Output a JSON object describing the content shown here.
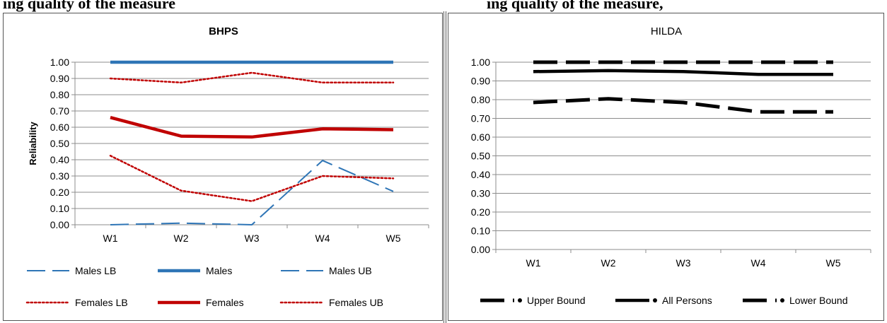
{
  "header": {
    "left_text": "ing quality of the measure",
    "right_text": "ing quality of the measure,"
  },
  "chart_data": [
    {
      "type": "line",
      "title": "BHPS",
      "xlabel": "",
      "ylabel": "Reliability",
      "categories": [
        "W1",
        "W2",
        "W3",
        "W4",
        "W5"
      ],
      "ylim": [
        0,
        1
      ],
      "yticks": [
        "0.00",
        "0.10",
        "0.20",
        "0.30",
        "0.40",
        "0.50",
        "0.60",
        "0.70",
        "0.80",
        "0.90",
        "1.00"
      ],
      "grid": true,
      "legend_position": "bottom",
      "series": [
        {
          "name": "Males LB",
          "values": [
            0.0,
            0.01,
            0.0,
            0.395,
            0.205
          ],
          "color": "#2e75b6",
          "style": "dash"
        },
        {
          "name": "Males",
          "values": [
            1.0,
            1.0,
            1.0,
            1.0,
            1.0
          ],
          "color": "#2e75b6",
          "style": "solid-thick"
        },
        {
          "name": "Males UB",
          "values": [
            1.0,
            1.0,
            1.0,
            1.0,
            1.0
          ],
          "color": "#2e75b6",
          "style": "dash"
        },
        {
          "name": "Females LB",
          "values": [
            0.425,
            0.21,
            0.145,
            0.3,
            0.285
          ],
          "color": "#c00000",
          "style": "dot"
        },
        {
          "name": "Females",
          "values": [
            0.66,
            0.545,
            0.54,
            0.59,
            0.585
          ],
          "color": "#c00000",
          "style": "solid-thick"
        },
        {
          "name": "Females UB",
          "values": [
            0.9,
            0.875,
            0.935,
            0.875,
            0.875
          ],
          "color": "#c00000",
          "style": "dot"
        }
      ]
    },
    {
      "type": "line",
      "title": "HILDA",
      "xlabel": "",
      "ylabel": "",
      "categories": [
        "W1",
        "W2",
        "W3",
        "W4",
        "W5"
      ],
      "ylim": [
        0,
        1
      ],
      "yticks": [
        "0.00",
        "0.10",
        "0.20",
        "0.30",
        "0.40",
        "0.50",
        "0.60",
        "0.70",
        "0.80",
        "0.90",
        "1.00"
      ],
      "grid": true,
      "legend_position": "bottom",
      "series": [
        {
          "name": "Upper Bound",
          "values": [
            1.0,
            1.0,
            1.0,
            1.0,
            1.0
          ],
          "color": "#000000",
          "style": "longdash"
        },
        {
          "name": "All Persons",
          "values": [
            0.95,
            0.955,
            0.95,
            0.935,
            0.935
          ],
          "color": "#000000",
          "style": "solid-thick"
        },
        {
          "name": "Lower Bound",
          "values": [
            0.785,
            0.805,
            0.785,
            0.735,
            0.735
          ],
          "color": "#000000",
          "style": "longdash"
        }
      ]
    }
  ]
}
